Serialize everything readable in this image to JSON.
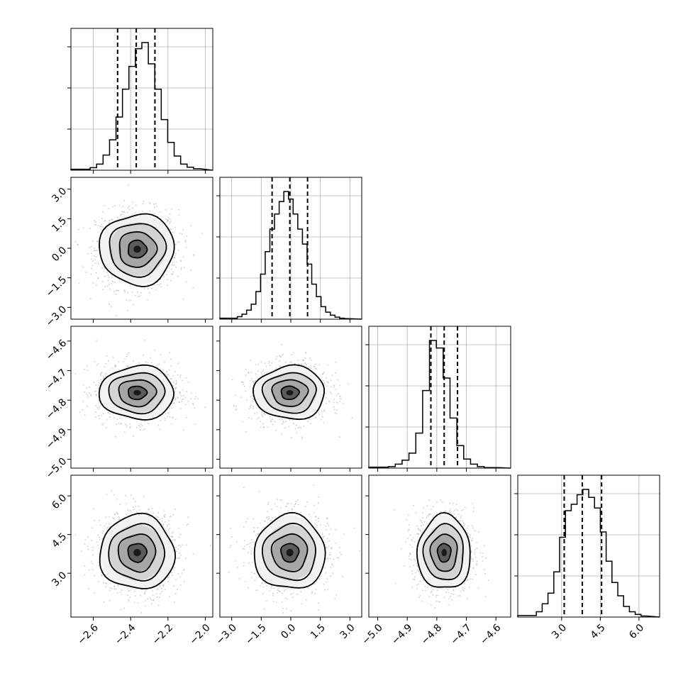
{
  "chart_data": {
    "type": "corner",
    "parameters": [
      {
        "name": "",
        "range": [
          -2.72,
          -1.96
        ],
        "ticks": [
          -2.6,
          -2.4,
          -2.2,
          -2.0
        ],
        "tick_labels": [
          "−2.6",
          "−2.4",
          "−2.2",
          "−2.0"
        ],
        "quantiles": [
          -2.47,
          -2.37,
          -2.27
        ],
        "mean": -2.365,
        "sd": 0.1
      },
      {
        "name": "",
        "range": [
          -3.6,
          3.6
        ],
        "ticks": [
          -3.0,
          -1.5,
          0.0,
          1.5,
          3.0
        ],
        "tick_labels": [
          "−3.0",
          "−1.5",
          "0.0",
          "1.5",
          "3.0"
        ],
        "quantiles": [
          -0.95,
          -0.05,
          0.85
        ],
        "mean": -0.05,
        "sd": 0.9
      },
      {
        "name": "",
        "range": [
          -5.03,
          -4.55
        ],
        "ticks": [
          -5.0,
          -4.9,
          -4.8,
          -4.7,
          -4.6
        ],
        "tick_labels": [
          "−5.0",
          "−4.9",
          "−4.8",
          "−4.7",
          "−4.6"
        ],
        "quantiles": [
          -4.82,
          -4.775,
          -4.73
        ],
        "mean": -4.775,
        "sd": 0.045
      },
      {
        "name": "",
        "range": [
          1.3,
          6.8
        ],
        "ticks": [
          3.0,
          4.5,
          6.0
        ],
        "tick_labels": [
          "3.0",
          "4.5",
          "6.0"
        ],
        "quantiles": [
          3.1,
          3.8,
          4.55
        ],
        "mean": 3.8,
        "sd": 0.72
      }
    ],
    "histograms": [
      [
        2,
        5,
        12,
        30,
        60,
        105,
        160,
        205,
        240,
        252,
        210,
        160,
        100,
        55,
        28,
        12,
        6,
        3
      ],
      [
        2,
        5,
        10,
        18,
        30,
        55,
        90,
        135,
        180,
        210,
        235,
        255,
        240,
        210,
        180,
        150,
        110,
        70,
        45,
        25,
        14,
        8,
        4,
        2,
        1
      ],
      [
        2,
        3,
        8,
        16,
        30,
        70,
        155,
        255,
        240,
        180,
        100,
        45,
        18,
        8,
        3,
        1,
        1
      ],
      [
        3,
        10,
        25,
        45,
        85,
        150,
        200,
        212,
        230,
        240,
        225,
        205,
        160,
        105,
        65,
        40,
        20,
        10,
        5,
        2
      ]
    ],
    "histogram_style": "step",
    "quantile_lines": "dashed",
    "grid": true,
    "line_color": "#000000",
    "point_color": "#b3b3b3"
  }
}
